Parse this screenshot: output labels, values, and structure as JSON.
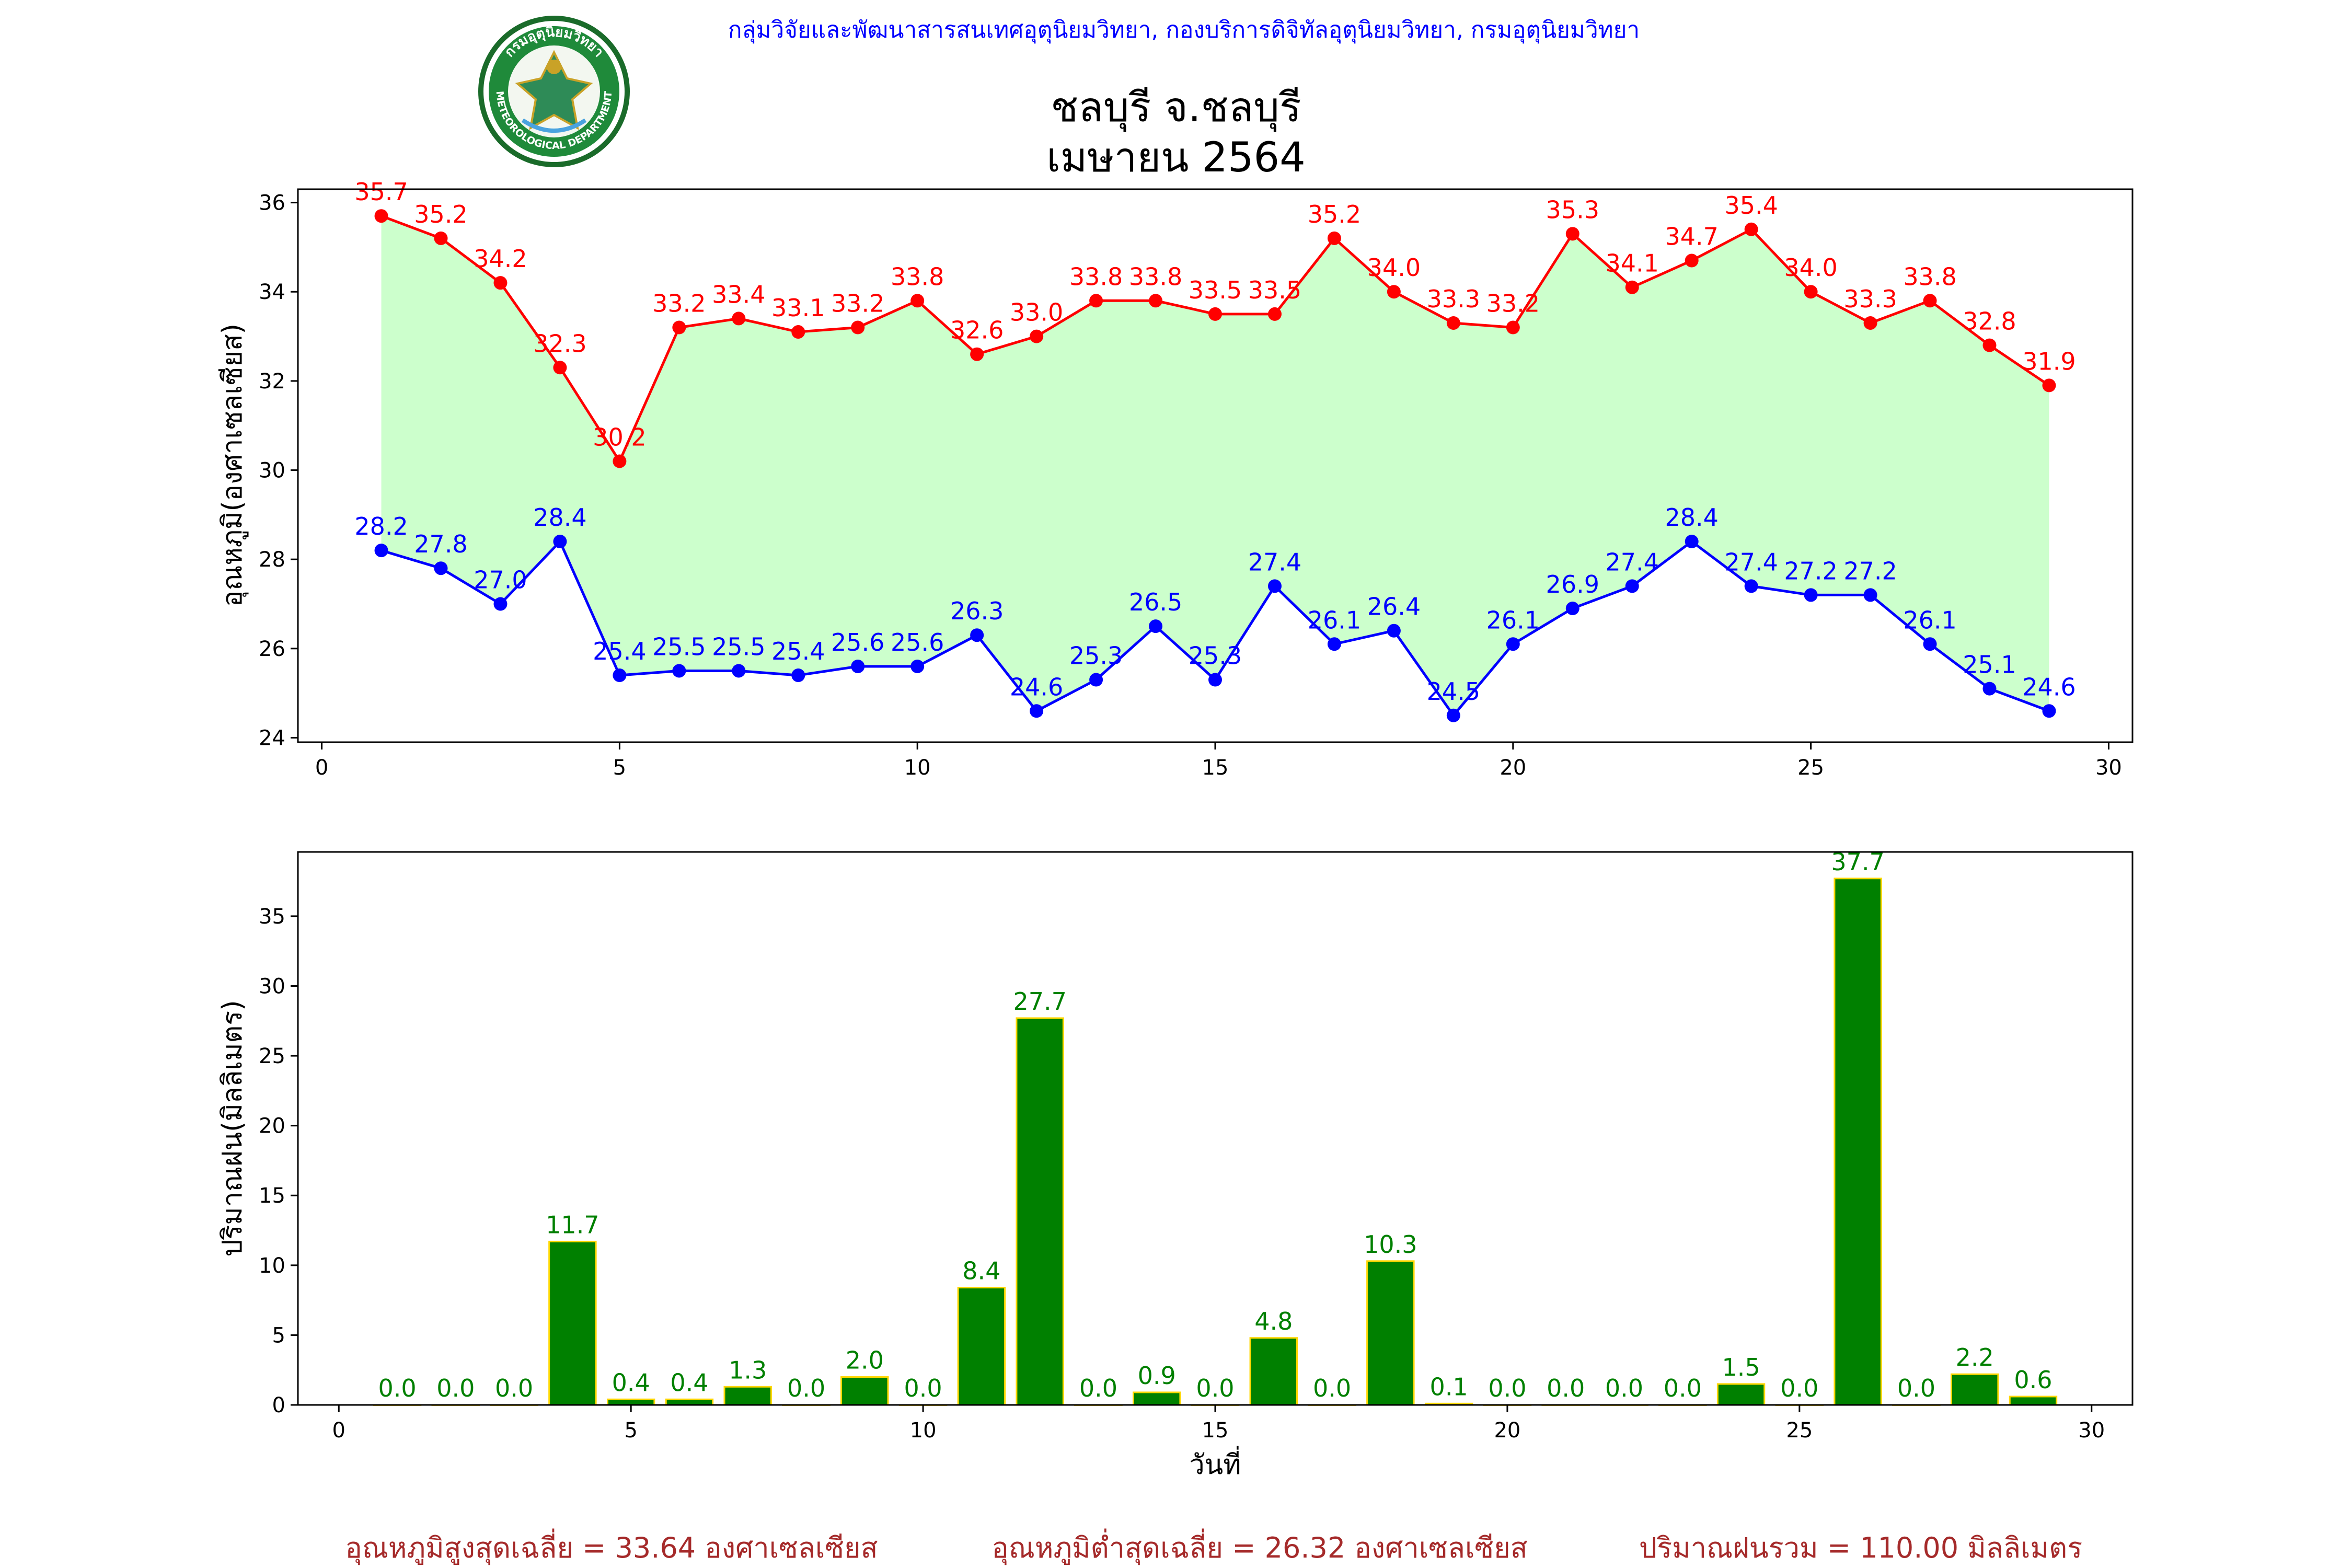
{
  "header": {
    "agency": "กลุ่มวิจัยและพัฒนาสารสนเทศอุตุนิยมวิทยา, กองบริการดิจิทัลอุตุนิยมวิทยา, กรมอุตุนิยมวิทยา",
    "title_line1": "ชลบุรี จ.ชลบุรี",
    "title_line2": "เมษายน 2564",
    "logo_top_text": "กรมอุตุนิยมวิทยา",
    "logo_bottom_text": "METEOROLOGICAL DEPARTMENT"
  },
  "colors": {
    "tmax": "#ff0000",
    "tmin": "#0000ff",
    "fill": "#ccffcc",
    "rain_bar": "#008000",
    "rain_edge": "#ffd700",
    "rain_label": "#008000",
    "footer": "#a52a2a",
    "agency": "#0000ff"
  },
  "chart_data": [
    {
      "type": "line",
      "ylabel": "อุณหภูมิ(องศาเซลเซียส)",
      "xlim": [
        -0.4,
        30.4
      ],
      "ylim": [
        23.9,
        36.3
      ],
      "xticks": [
        0,
        5,
        10,
        15,
        20,
        25,
        30
      ],
      "yticks": [
        24,
        26,
        28,
        30,
        32,
        34,
        36
      ],
      "x": [
        1,
        2,
        3,
        4,
        5,
        6,
        7,
        8,
        9,
        10,
        11,
        12,
        13,
        14,
        15,
        16,
        17,
        18,
        19,
        20,
        21,
        22,
        23,
        24,
        25,
        26,
        27,
        28,
        29
      ],
      "series": [
        {
          "key": "tmax",
          "values": [
            35.7,
            35.2,
            34.2,
            32.3,
            30.2,
            33.2,
            33.4,
            33.1,
            33.2,
            33.8,
            32.6,
            33.0,
            33.8,
            33.8,
            33.5,
            33.5,
            35.2,
            34.0,
            33.3,
            33.2,
            35.3,
            34.1,
            34.7,
            35.4,
            34.0,
            33.3,
            33.8,
            32.8,
            31.9
          ]
        },
        {
          "key": "tmin",
          "values": [
            28.2,
            27.8,
            27.0,
            28.4,
            25.4,
            25.5,
            25.5,
            25.4,
            25.6,
            25.6,
            26.3,
            24.6,
            25.3,
            26.5,
            25.3,
            27.4,
            26.1,
            26.4,
            24.5,
            26.1,
            26.9,
            27.4,
            28.4,
            27.4,
            27.2,
            27.2,
            26.1,
            25.1,
            24.6
          ]
        }
      ]
    },
    {
      "type": "bar",
      "xlabel": "วันที่",
      "ylabel": "ปริมาณฝน(มิลลิเมตร)",
      "xlim": [
        -0.7,
        30.7
      ],
      "ylim": [
        0,
        39.6
      ],
      "xticks": [
        0,
        5,
        10,
        15,
        20,
        25,
        30
      ],
      "yticks": [
        0,
        5,
        10,
        15,
        20,
        25,
        30,
        35
      ],
      "x": [
        1,
        2,
        3,
        4,
        5,
        6,
        7,
        8,
        9,
        10,
        11,
        12,
        13,
        14,
        15,
        16,
        17,
        18,
        19,
        20,
        21,
        22,
        23,
        24,
        25,
        26,
        27,
        28,
        29
      ],
      "values": [
        0.0,
        0.0,
        0.0,
        11.7,
        0.4,
        0.4,
        1.3,
        0.0,
        2.0,
        0.0,
        8.4,
        27.7,
        0.0,
        0.9,
        0.0,
        4.8,
        0.0,
        10.3,
        0.1,
        0.0,
        0.0,
        0.0,
        0.0,
        1.5,
        0.0,
        37.7,
        0.0,
        2.2,
        0.6
      ]
    }
  ],
  "footer": {
    "avg_max": "อุณหภูมิสูงสุดเฉลี่ย = 33.64 องศาเซลเซียส",
    "avg_min": "อุณหภูมิต่ำสุดเฉลี่ย = 26.32 องศาเซลเซียส",
    "total_rain": "ปริมาณฝนรวม = 110.00 มิลลิเมตร"
  }
}
